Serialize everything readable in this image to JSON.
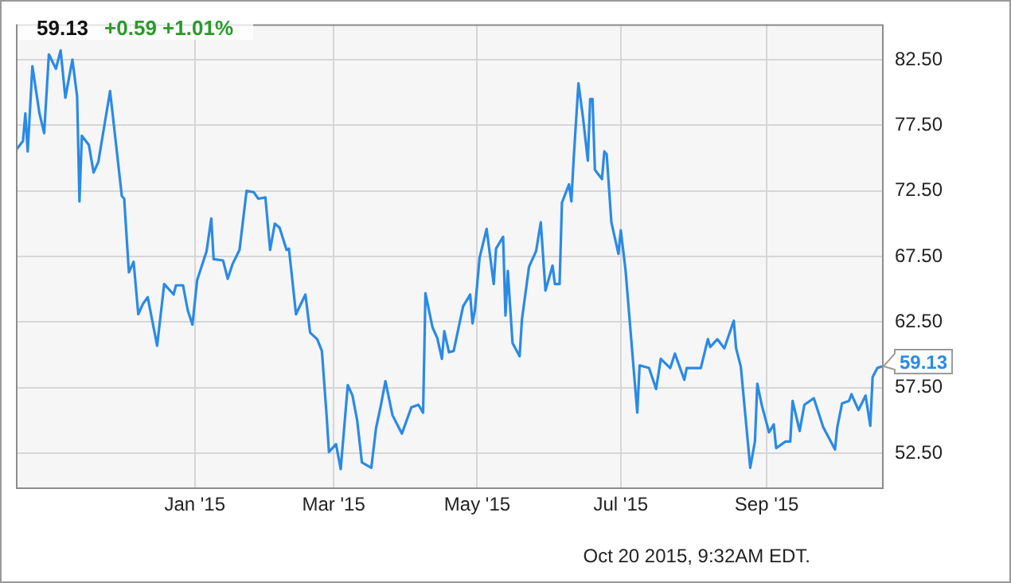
{
  "chart_data": {
    "type": "line",
    "x": [
      "2014-10-17",
      "2014-10-20",
      "2014-10-21",
      "2014-10-22",
      "2014-10-24",
      "2014-10-27",
      "2014-10-29",
      "2014-10-31",
      "2014-11-03",
      "2014-11-05",
      "2014-11-07",
      "2014-11-10",
      "2014-11-12",
      "2014-11-13",
      "2014-11-14",
      "2014-11-17",
      "2014-11-19",
      "2014-11-21",
      "2014-11-26",
      "2014-12-01",
      "2014-12-02",
      "2014-12-04",
      "2014-12-06",
      "2014-12-08",
      "2014-12-10",
      "2014-12-12",
      "2014-12-16",
      "2014-12-19",
      "2014-12-23",
      "2014-12-24",
      "2014-12-27",
      "2014-12-29",
      "2014-12-31",
      "2015-01-02",
      "2015-01-06",
      "2015-01-08",
      "2015-01-09",
      "2015-01-13",
      "2015-01-15",
      "2015-01-17",
      "2015-01-20",
      "2015-01-23",
      "2015-01-26",
      "2015-01-28",
      "2015-01-31",
      "2015-02-02",
      "2015-02-04",
      "2015-02-06",
      "2015-02-09",
      "2015-02-10",
      "2015-02-13",
      "2015-02-17",
      "2015-02-19",
      "2015-02-22",
      "2015-02-24",
      "2015-02-26",
      "2015-02-27",
      "2015-03-02",
      "2015-03-04",
      "2015-03-07",
      "2015-03-09",
      "2015-03-11",
      "2015-03-13",
      "2015-03-17",
      "2015-03-19",
      "2015-03-21",
      "2015-03-23",
      "2015-03-26",
      "2015-03-30",
      "2015-04-03",
      "2015-04-06",
      "2015-04-08",
      "2015-04-09",
      "2015-04-12",
      "2015-04-14",
      "2015-04-16",
      "2015-04-17",
      "2015-04-19",
      "2015-04-21",
      "2015-04-25",
      "2015-04-28",
      "2015-04-29",
      "2015-04-30",
      "2015-05-02",
      "2015-05-05",
      "2015-05-08",
      "2015-05-09",
      "2015-05-12",
      "2015-05-13",
      "2015-05-14",
      "2015-05-16",
      "2015-05-19",
      "2015-05-20",
      "2015-05-23",
      "2015-05-26",
      "2015-05-28",
      "2015-05-30",
      "2015-06-02",
      "2015-06-03",
      "2015-06-05",
      "2015-06-06",
      "2015-06-09",
      "2015-06-10",
      "2015-06-11",
      "2015-06-13",
      "2015-06-15",
      "2015-06-17",
      "2015-06-18",
      "2015-06-19",
      "2015-06-20",
      "2015-06-23",
      "2015-06-24",
      "2015-06-25",
      "2015-06-27",
      "2015-06-30",
      "2015-07-01",
      "2015-07-03",
      "2015-07-08",
      "2015-07-09",
      "2015-07-13",
      "2015-07-16",
      "2015-07-18",
      "2015-07-22",
      "2015-07-24",
      "2015-07-28",
      "2015-07-29",
      "2015-08-01",
      "2015-08-04",
      "2015-08-07",
      "2015-08-08",
      "2015-08-11",
      "2015-08-14",
      "2015-08-18",
      "2015-08-19",
      "2015-08-21",
      "2015-08-25",
      "2015-08-27",
      "2015-08-28",
      "2015-08-30",
      "2015-09-02",
      "2015-09-04",
      "2015-09-05",
      "2015-09-09",
      "2015-09-11",
      "2015-09-12",
      "2015-09-15",
      "2015-09-17",
      "2015-09-21",
      "2015-09-25",
      "2015-09-30",
      "2015-10-01",
      "2015-10-03",
      "2015-10-06",
      "2015-10-07",
      "2015-10-10",
      "2015-10-13",
      "2015-10-15",
      "2015-10-16",
      "2015-10-18",
      "2015-10-20"
    ],
    "series": [
      {
        "color": "#2a8ae6",
        "values": [
          75.6,
          76.3,
          78.4,
          75.5,
          82.0,
          78.4,
          76.9,
          82.9,
          81.8,
          83.2,
          79.6,
          82.5,
          79.7,
          71.7,
          76.7,
          76.0,
          73.9,
          74.7,
          80.1,
          72.1,
          71.9,
          66.3,
          67.1,
          63.1,
          63.9,
          64.4,
          60.7,
          65.4,
          64.6,
          65.3,
          65.3,
          63.4,
          62.3,
          65.7,
          67.9,
          70.4,
          67.3,
          67.2,
          65.8,
          66.9,
          68.0,
          72.5,
          72.4,
          71.9,
          72.0,
          68.0,
          70.0,
          69.7,
          68.0,
          68.1,
          63.1,
          64.6,
          61.7,
          61.2,
          60.3,
          55.4,
          52.6,
          53.2,
          51.3,
          57.7,
          56.9,
          55.0,
          51.8,
          51.4,
          54.4,
          56.1,
          58.0,
          55.4,
          54.0,
          56.0,
          56.2,
          55.6,
          64.7,
          62.1,
          61.3,
          59.7,
          61.8,
          60.2,
          60.3,
          63.7,
          64.6,
          62.4,
          63.4,
          67.4,
          69.6,
          65.4,
          68.1,
          69.0,
          63.0,
          66.4,
          60.9,
          59.9,
          62.7,
          66.7,
          67.9,
          70.1,
          64.9,
          66.8,
          65.4,
          65.4,
          71.6,
          73.0,
          71.7,
          75.0,
          80.7,
          78.0,
          74.8,
          79.5,
          79.5,
          74.1,
          73.4,
          75.5,
          75.3,
          70.1,
          67.7,
          69.5,
          66.5,
          55.6,
          59.2,
          59.0,
          57.4,
          59.7,
          59.0,
          60.1,
          58.1,
          59.0,
          59.0,
          59.0,
          61.2,
          60.6,
          61.2,
          60.5,
          62.6,
          60.5,
          59.1,
          51.4,
          53.4,
          57.8,
          56.1,
          54.1,
          54.7,
          52.9,
          53.4,
          53.4,
          56.5,
          54.2,
          56.2,
          56.7,
          54.5,
          52.8,
          54.5,
          56.3,
          56.5,
          57.0,
          55.8,
          56.9,
          54.6,
          58.3,
          59.0,
          59.13
        ]
      }
    ],
    "xlim": [
      "2014-10-17",
      "2015-10-20"
    ],
    "xticks": [
      {
        "value": "2015-01-01",
        "label": "Jan '15"
      },
      {
        "value": "2015-03-01",
        "label": "Mar '15"
      },
      {
        "value": "2015-05-01",
        "label": "May '15"
      },
      {
        "value": "2015-07-01",
        "label": "Jul '15"
      },
      {
        "value": "2015-09-01",
        "label": "Sep '15"
      }
    ],
    "ylim": [
      49.9,
      85.2
    ],
    "yticks": [
      {
        "value": 52.5,
        "label": "52.50"
      },
      {
        "value": 57.5,
        "label": "57.50"
      },
      {
        "value": 62.5,
        "label": "62.50"
      },
      {
        "value": 67.5,
        "label": "67.50"
      },
      {
        "value": 72.5,
        "label": "72.50"
      },
      {
        "value": 77.5,
        "label": "77.50"
      },
      {
        "value": 82.5,
        "label": "82.50"
      }
    ],
    "grid": true,
    "annotations": [
      "59.13",
      "+0.59  +1.01%",
      "Oct 20 2015, 9:32AM EDT.",
      {
        "text": "59.13",
        "x": "2015-10-20",
        "y": 59.13
      }
    ]
  }
}
